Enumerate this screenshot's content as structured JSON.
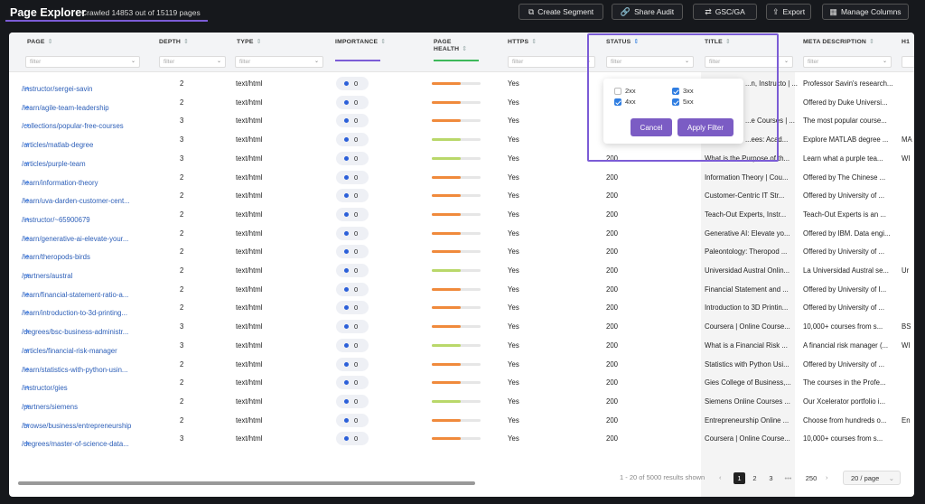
{
  "header": {
    "title": "Page Explorer",
    "crawled": "Crawled 14853 out of 15119 pages",
    "buttons": [
      {
        "label": "Create Segment",
        "icon": "segment-icon"
      },
      {
        "label": "Share Audit",
        "icon": "link-icon"
      },
      {
        "label": "GSC/GA",
        "icon": "swap-icon"
      },
      {
        "label": "Export",
        "icon": "export-icon"
      },
      {
        "label": "Manage Columns",
        "icon": "columns-icon"
      }
    ]
  },
  "columns": [
    {
      "label": "PAGE"
    },
    {
      "label": "DEPTH"
    },
    {
      "label": "TYPE"
    },
    {
      "label": "IMPORTANCE"
    },
    {
      "label": "PAGE HEALTH"
    },
    {
      "label": "HTTPS"
    },
    {
      "label": "STATUS"
    },
    {
      "label": "TITLE"
    },
    {
      "label": "META DESCRIPTION"
    },
    {
      "label": "H1"
    }
  ],
  "filter_placeholder": "filter",
  "rows": [
    {
      "page": "/instructor/sergei-savin",
      "depth": "2",
      "type": "text/html",
      "importance": "0",
      "health": 0.6,
      "health_color": "#f08a3c",
      "https": "Yes",
      "status": "",
      "title": "",
      "meta": "Professor Savin's research...",
      "h1": ""
    },
    {
      "page": "/learn/agile-team-leadership",
      "depth": "2",
      "type": "text/html",
      "importance": "0",
      "health": 0.6,
      "health_color": "#f08a3c",
      "https": "Yes",
      "status": "",
      "title": "",
      "meta": "Offered by Duke Universi...",
      "h1": ""
    },
    {
      "page": "/collections/popular-free-courses",
      "depth": "3",
      "type": "text/html",
      "importance": "0",
      "health": 0.6,
      "health_color": "#f08a3c",
      "https": "Yes",
      "status": "",
      "title": "",
      "meta": "The most popular course...",
      "h1": ""
    },
    {
      "page": "/articles/matlab-degree",
      "depth": "3",
      "type": "text/html",
      "importance": "0",
      "health": 0.6,
      "health_color": "#b9d86a",
      "https": "Yes",
      "status": "",
      "title": "",
      "meta": "Explore MATLAB degree ...",
      "h1": "MA"
    },
    {
      "page": "/articles/purple-team",
      "depth": "3",
      "type": "text/html",
      "importance": "0",
      "health": 0.6,
      "health_color": "#b9d86a",
      "https": "Yes",
      "status": "200",
      "title": "What is the Purpose of th...",
      "meta": "Learn what a purple tea...",
      "h1": "WI"
    },
    {
      "page": "/learn/information-theory",
      "depth": "2",
      "type": "text/html",
      "importance": "0",
      "health": 0.6,
      "health_color": "#f08a3c",
      "https": "Yes",
      "status": "200",
      "title": "Information Theory | Cou...",
      "meta": "Offered by The Chinese ...",
      "h1": ""
    },
    {
      "page": "/learn/uva-darden-customer-cent...",
      "depth": "2",
      "type": "text/html",
      "importance": "0",
      "health": 0.6,
      "health_color": "#f08a3c",
      "https": "Yes",
      "status": "200",
      "title": "Customer-Centric IT Str...",
      "meta": "Offered by University of ...",
      "h1": ""
    },
    {
      "page": "/instructor/~65900679",
      "depth": "2",
      "type": "text/html",
      "importance": "0",
      "health": 0.6,
      "health_color": "#f08a3c",
      "https": "Yes",
      "status": "200",
      "title": "Teach-Out Experts, Instr...",
      "meta": "Teach-Out Experts is an ...",
      "h1": ""
    },
    {
      "page": "/learn/generative-ai-elevate-your...",
      "depth": "2",
      "type": "text/html",
      "importance": "0",
      "health": 0.6,
      "health_color": "#f08a3c",
      "https": "Yes",
      "status": "200",
      "title": "Generative AI: Elevate yo...",
      "meta": "Offered by IBM. Data engi...",
      "h1": ""
    },
    {
      "page": "/learn/theropods-birds",
      "depth": "2",
      "type": "text/html",
      "importance": "0",
      "health": 0.6,
      "health_color": "#f08a3c",
      "https": "Yes",
      "status": "200",
      "title": "Paleontology: Theropod ...",
      "meta": "Offered by University of ...",
      "h1": ""
    },
    {
      "page": "/partners/austral",
      "depth": "2",
      "type": "text/html",
      "importance": "0",
      "health": 0.6,
      "health_color": "#b9d86a",
      "https": "Yes",
      "status": "200",
      "title": "Universidad Austral Onlin...",
      "meta": "La Universidad Austral se...",
      "h1": "Ur"
    },
    {
      "page": "/learn/financial-statement-ratio-a...",
      "depth": "2",
      "type": "text/html",
      "importance": "0",
      "health": 0.6,
      "health_color": "#f08a3c",
      "https": "Yes",
      "status": "200",
      "title": "Financial Statement and ...",
      "meta": "Offered by University of I...",
      "h1": ""
    },
    {
      "page": "/learn/introduction-to-3d-printing...",
      "depth": "2",
      "type": "text/html",
      "importance": "0",
      "health": 0.6,
      "health_color": "#f08a3c",
      "https": "Yes",
      "status": "200",
      "title": "Introduction to 3D Printin...",
      "meta": "Offered by University of ...",
      "h1": ""
    },
    {
      "page": "/degrees/bsc-business-administr...",
      "depth": "3",
      "type": "text/html",
      "importance": "0",
      "health": 0.6,
      "health_color": "#f08a3c",
      "https": "Yes",
      "status": "200",
      "title": "Coursera | Online Course...",
      "meta": "10,000+ courses from s...",
      "h1": "BS"
    },
    {
      "page": "/articles/financial-risk-manager",
      "depth": "3",
      "type": "text/html",
      "importance": "0",
      "health": 0.6,
      "health_color": "#b9d86a",
      "https": "Yes",
      "status": "200",
      "title": "What is a Financial Risk ...",
      "meta": "A financial risk manager (...",
      "h1": "WI"
    },
    {
      "page": "/learn/statistics-with-python-usin...",
      "depth": "2",
      "type": "text/html",
      "importance": "0",
      "health": 0.6,
      "health_color": "#f08a3c",
      "https": "Yes",
      "status": "200",
      "title": "Statistics with Python Usi...",
      "meta": "Offered by University of ...",
      "h1": ""
    },
    {
      "page": "/instructor/gies",
      "depth": "2",
      "type": "text/html",
      "importance": "0",
      "health": 0.6,
      "health_color": "#f08a3c",
      "https": "Yes",
      "status": "200",
      "title": "Gies College of Business,...",
      "meta": "The courses in the Profe...",
      "h1": ""
    },
    {
      "page": "/partners/siemens",
      "depth": "2",
      "type": "text/html",
      "importance": "0",
      "health": 0.6,
      "health_color": "#b9d86a",
      "https": "Yes",
      "status": "200",
      "title": "Siemens Online Courses ...",
      "meta": "Our Xcelerator portfolio i...",
      "h1": ""
    },
    {
      "page": "/browse/business/entrepreneurship",
      "depth": "2",
      "type": "text/html",
      "importance": "0",
      "health": 0.6,
      "health_color": "#f08a3c",
      "https": "Yes",
      "status": "200",
      "title": "Entrepreneurship Online ...",
      "meta": "Choose from hundreds o...",
      "h1": "En"
    },
    {
      "page": "/degrees/master-of-science-data...",
      "depth": "3",
      "type": "text/html",
      "importance": "0",
      "health": 0.6,
      "health_color": "#f08a3c",
      "https": "Yes",
      "status": "200",
      "title": "Coursera | Online Course...",
      "meta": "10,000+ courses from s...",
      "h1": ""
    }
  ],
  "partial_titles": [
    "...n, Instructo | ...",
    "",
    "...e Courses | ...",
    "...ees: Acad..."
  ],
  "popup": {
    "options": [
      {
        "label": "2xx",
        "checked": false
      },
      {
        "label": "3xx",
        "checked": true
      },
      {
        "label": "4xx",
        "checked": true
      },
      {
        "label": "5xx",
        "checked": true
      }
    ],
    "cancel": "Cancel",
    "apply": "Apply Filter"
  },
  "footer": {
    "results": "1 - 20 of 5000 results shown",
    "pages": [
      "1",
      "2",
      "3",
      "•••",
      "250"
    ],
    "current_page": "1",
    "per_page": "20 / page"
  }
}
